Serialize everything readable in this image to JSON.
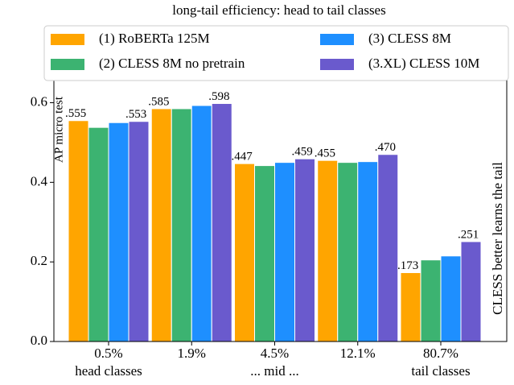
{
  "chart_data": {
    "type": "bar",
    "title": "long-tail efficiency: head to tail classes",
    "y_label": "AP micro test",
    "annotation": "CLESS better learns the tail",
    "categories": [
      "0.5%",
      "1.9%",
      "4.5%",
      "12.1%",
      "80.7%"
    ],
    "category_sublabels": [
      "head classes",
      null,
      "... mid ...",
      null,
      "tail classes"
    ],
    "series": [
      {
        "name": "(1) RoBERTa 125M",
        "color": "#FFA500",
        "values": [
          0.555,
          0.585,
          0.447,
          0.455,
          0.173
        ],
        "value_labels": [
          ".555",
          ".585",
          ".447",
          ".455",
          ".173"
        ]
      },
      {
        "name": "(2) CLESS 8M no pretrain",
        "color": "#3CB371",
        "values": [
          0.538,
          0.585,
          0.442,
          0.45,
          0.205
        ]
      },
      {
        "name": "(3) CLESS 8M",
        "color": "#1E8FFF",
        "values": [
          0.55,
          0.593,
          0.45,
          0.452,
          0.215
        ]
      },
      {
        "name": "(3.XL) CLESS 10M",
        "color": "#6A5ACD",
        "values": [
          0.553,
          0.598,
          0.459,
          0.47,
          0.251
        ],
        "value_labels": [
          ".553",
          ".598",
          ".459",
          ".470",
          ".251"
        ]
      }
    ],
    "ylim": [
      0,
      0.68
    ],
    "yticks": [
      {
        "value": 0,
        "label": "0.0"
      },
      {
        "value": 0.2,
        "label": "0.2"
      },
      {
        "value": 0.4,
        "label": "0.4"
      },
      {
        "value": 0.6,
        "label": "0.6"
      }
    ]
  }
}
